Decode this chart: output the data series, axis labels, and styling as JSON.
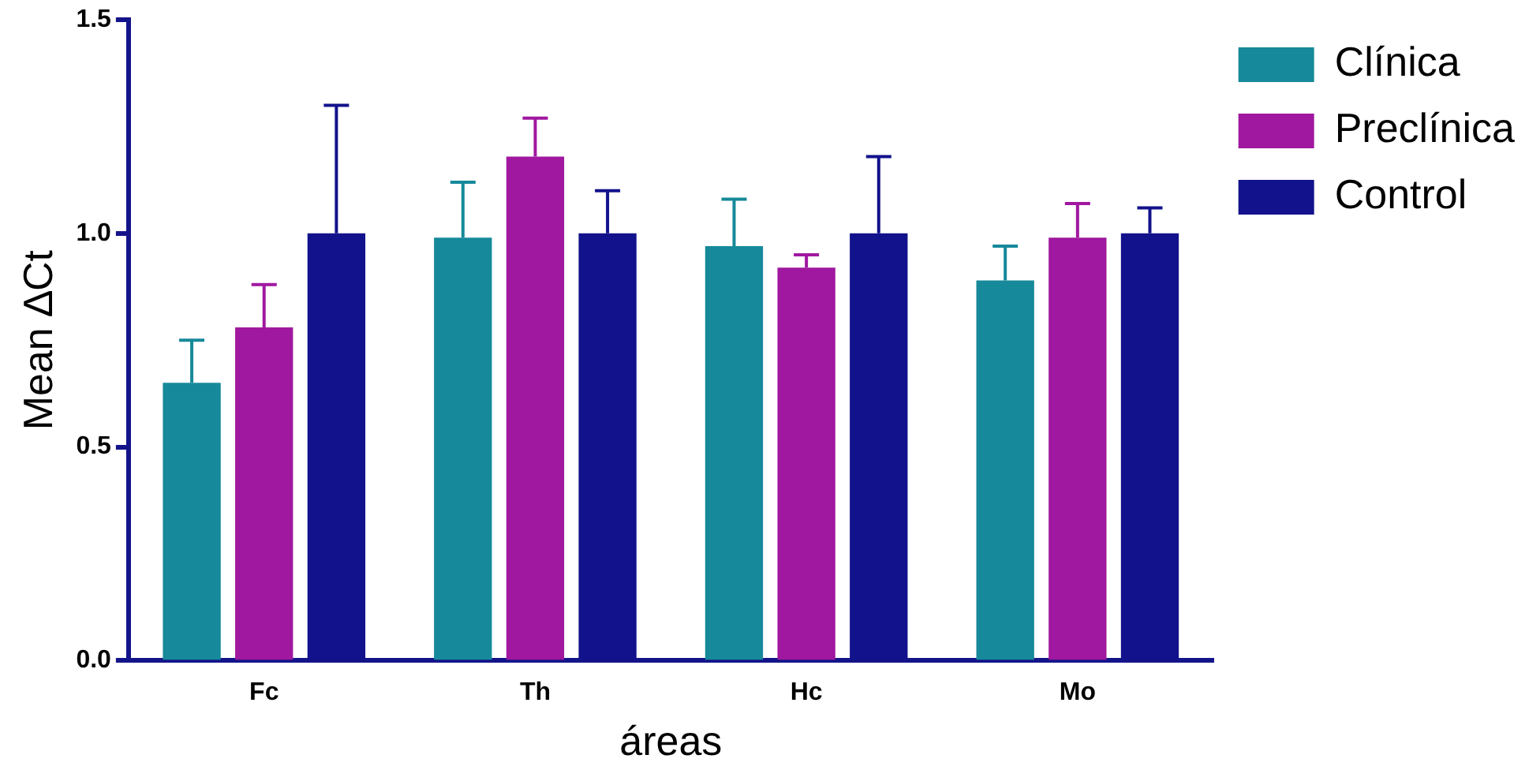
{
  "chart_data": {
    "type": "bar",
    "xlabel": "áreas",
    "ylabel": "Mean ∆Ct",
    "categories": [
      "Fc",
      "Th",
      "Hc",
      "Mo"
    ],
    "series": [
      {
        "name": "Clínica",
        "color": "#16899a",
        "values": [
          0.65,
          0.99,
          0.97,
          0.89
        ],
        "errors": [
          [
            0.65,
            0.75
          ],
          [
            0.99,
            1.12
          ],
          [
            0.97,
            1.08
          ],
          [
            0.89,
            0.97
          ]
        ]
      },
      {
        "name": "Preclínica",
        "color": "#a0189f",
        "values": [
          0.78,
          1.18,
          0.92,
          0.99
        ],
        "errors": [
          [
            0.78,
            0.88
          ],
          [
            1.18,
            1.27
          ],
          [
            0.92,
            0.95
          ],
          [
            0.99,
            1.07
          ]
        ]
      },
      {
        "name": "Control",
        "color": "#12128c",
        "values": [
          1.0,
          1.0,
          1.0,
          1.0
        ],
        "errors": [
          [
            1.0,
            1.3
          ],
          [
            1.0,
            1.1
          ],
          [
            1.0,
            1.18
          ],
          [
            1.0,
            1.06
          ]
        ]
      }
    ],
    "ylim": [
      0,
      1.5
    ],
    "yticks": [
      {
        "value": 0,
        "label": "0.0"
      },
      {
        "value": 0.5,
        "label": "0.5"
      },
      {
        "value": 1,
        "label": "1.0"
      },
      {
        "value": 1.5,
        "label": "1.5"
      }
    ],
    "grid": false,
    "legend": "top right"
  }
}
